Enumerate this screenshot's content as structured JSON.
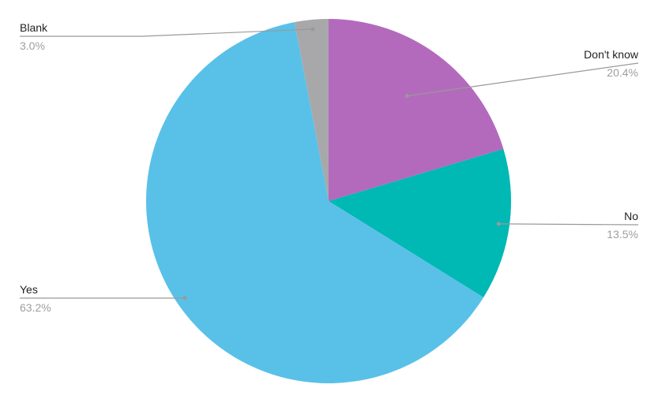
{
  "chart_data": {
    "type": "pie",
    "title": "",
    "legend": "none",
    "start_angle_deg": 0,
    "direction": "clockwise",
    "slices": [
      {
        "label": "Don't know",
        "value": 20.4,
        "percent_label": "20.4%",
        "color": "#b36abd"
      },
      {
        "label": "No",
        "value": 13.5,
        "percent_label": "13.5%",
        "color": "#00b8b4"
      },
      {
        "label": "Yes",
        "value": 63.2,
        "percent_label": "63.2%",
        "color": "#59c1e8"
      },
      {
        "label": "Blank",
        "value": 3.0,
        "percent_label": "3.0%",
        "color": "#a8a8ab"
      }
    ],
    "label_style": {
      "line_color": "#999999",
      "dot_color": "#999999",
      "name_color": "#222222",
      "percent_color": "#9e9e9e"
    }
  }
}
